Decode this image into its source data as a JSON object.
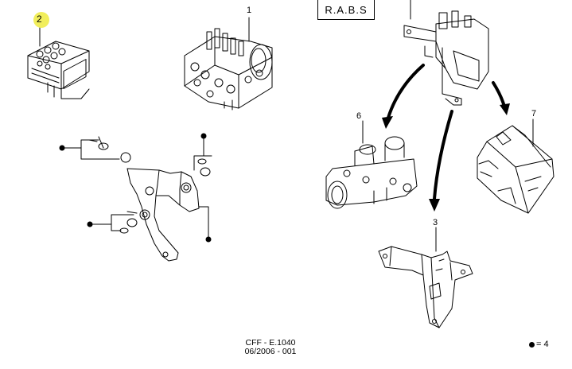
{
  "title_box": "R.A.B.S",
  "callouts": {
    "part_1": "1",
    "part_2": "2",
    "part_3": "3",
    "part_6": "6",
    "part_7": "7"
  },
  "footer": {
    "ref": "CFF - E.1040",
    "date": "06/2006 - 001"
  },
  "legend": {
    "symbol": "bullet-dot",
    "text": "= 4"
  },
  "colors": {
    "highlight": "#f1ee5c",
    "line": "#000000"
  }
}
